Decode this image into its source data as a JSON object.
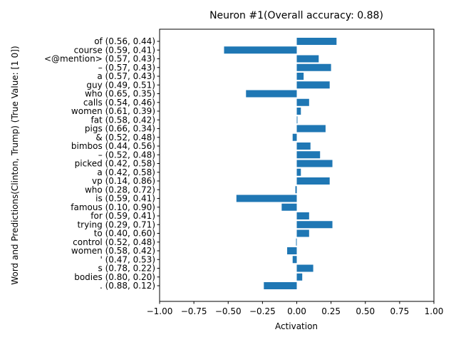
{
  "chart_data": {
    "type": "bar",
    "orientation": "horizontal",
    "title": "Neuron #1(Overall accuracy: 0.88)",
    "xlabel": "Activation",
    "ylabel": "Word and Predictions(Clinton, Trump) (True Value: [1 0])",
    "xlim": [
      -1.0,
      1.0
    ],
    "xticks": [
      "−1.00",
      "−0.75",
      "−0.50",
      "−0.25",
      "0.00",
      "0.25",
      "0.50",
      "0.75",
      "1.00"
    ],
    "grid": false,
    "bar_color": "#1f77b4",
    "categories": [
      "of (0.56, 0.44)",
      "course (0.59, 0.41)",
      "<@mention> (0.57, 0.43)",
      "– (0.57, 0.43)",
      "a (0.57, 0.43)",
      "guy (0.49, 0.51)",
      "who (0.65, 0.35)",
      "calls (0.54, 0.46)",
      "women (0.61, 0.39)",
      "fat (0.58, 0.42)",
      "pigs (0.66, 0.34)",
      "& (0.52, 0.48)",
      "bimbos (0.44, 0.56)",
      "– (0.52, 0.48)",
      "picked (0.42, 0.58)",
      "a (0.42, 0.58)",
      "vp (0.14, 0.86)",
      "who (0.28, 0.72)",
      "is (0.59, 0.41)",
      "famous (0.10, 0.90)",
      "for (0.59, 0.41)",
      "trying (0.29, 0.71)",
      "to (0.40, 0.60)",
      "control (0.52, 0.48)",
      "women (0.58, 0.42)",
      "' (0.47, 0.53)",
      "s (0.78, 0.22)",
      "bodies (0.80, 0.20)",
      ". (0.88, 0.12)"
    ],
    "values": [
      0.29,
      -0.53,
      0.16,
      0.25,
      0.05,
      0.24,
      -0.37,
      0.09,
      0.03,
      0.005,
      0.21,
      -0.03,
      0.1,
      0.17,
      0.26,
      0.03,
      0.24,
      -0.01,
      -0.44,
      -0.11,
      0.09,
      0.26,
      0.09,
      -0.005,
      -0.07,
      -0.03,
      0.12,
      0.04,
      -0.24
    ]
  }
}
